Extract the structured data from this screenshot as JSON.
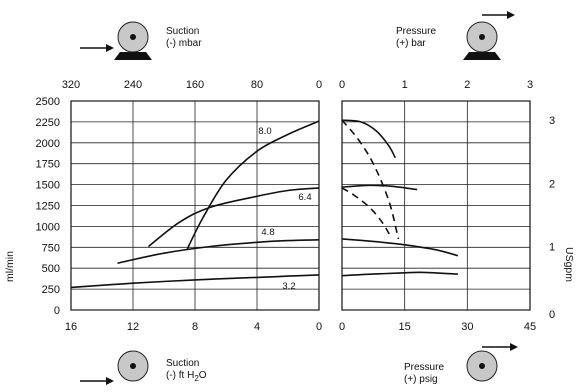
{
  "chart_data": {
    "type": "line",
    "y_left": {
      "label": "ml/min",
      "ticks": [
        "0",
        "250",
        "500",
        "750",
        "1000",
        "1250",
        "1500",
        "1750",
        "2000",
        "2250",
        "2500"
      ],
      "ylim": [
        0,
        2500
      ]
    },
    "y_right": {
      "label": "USgpm",
      "ticks": [
        "0",
        "1",
        "2",
        "3"
      ],
      "ylim": [
        0,
        3.3
      ]
    },
    "suction_panel": {
      "top_caption": {
        "line1": "Suction",
        "line2": "(-) mbar"
      },
      "top_ticks": [
        "320",
        "240",
        "160",
        "80",
        "0"
      ],
      "top_range": [
        320,
        0
      ],
      "bottom_caption": {
        "line1": "Suction",
        "line2": "(-) ft H",
        "sub": "2",
        "line2_end": "O"
      },
      "bottom_ticks": [
        "16",
        "12",
        "8",
        "4",
        "0"
      ],
      "bottom_range": [
        16,
        0
      ],
      "series": [
        {
          "name": "8.0",
          "points": [
            [
              8.5,
              730
            ],
            [
              7.5,
              1100
            ],
            [
              6,
              1550
            ],
            [
              4,
              1900
            ],
            [
              2,
              2100
            ],
            [
              0,
              2260
            ]
          ]
        },
        {
          "name": "6.4",
          "points": [
            [
              11,
              760
            ],
            [
              9,
              1050
            ],
            [
              7,
              1230
            ],
            [
              4,
              1360
            ],
            [
              2,
              1430
            ],
            [
              0,
              1460
            ]
          ]
        },
        {
          "name": "4.8",
          "points": [
            [
              13,
              560
            ],
            [
              10,
              680
            ],
            [
              7,
              760
            ],
            [
              4,
              810
            ],
            [
              2,
              830
            ],
            [
              0,
              840
            ]
          ]
        },
        {
          "name": "3.2",
          "points": [
            [
              16,
              270
            ],
            [
              12,
              320
            ],
            [
              8,
              360
            ],
            [
              4,
              390
            ],
            [
              2,
              405
            ],
            [
              0,
              420
            ]
          ]
        }
      ]
    },
    "pressure_panel": {
      "top_caption": {
        "line1": "Pressure",
        "line2": "(+) bar"
      },
      "top_ticks": [
        "0",
        "1",
        "2",
        "3"
      ],
      "top_range": [
        0,
        3
      ],
      "bottom_caption": {
        "line1": "Pressure",
        "line2": "(+) psig"
      },
      "bottom_ticks": [
        "0",
        "15",
        "30",
        "45"
      ],
      "bottom_range": [
        0,
        45
      ],
      "solid_series": [
        {
          "points": [
            [
              0,
              2270
            ],
            [
              0.3,
              2250
            ],
            [
              0.55,
              2140
            ],
            [
              0.75,
              1960
            ],
            [
              0.85,
              1820
            ]
          ]
        },
        {
          "points": [
            [
              0,
              1470
            ],
            [
              0.4,
              1490
            ],
            [
              0.8,
              1480
            ],
            [
              1.2,
              1440
            ]
          ]
        },
        {
          "points": [
            [
              0,
              850
            ],
            [
              0.5,
              820
            ],
            [
              1,
              780
            ],
            [
              1.5,
              720
            ],
            [
              1.85,
              650
            ]
          ]
        },
        {
          "points": [
            [
              0,
              410
            ],
            [
              0.5,
              430
            ],
            [
              1,
              445
            ],
            [
              1.3,
              450
            ],
            [
              1.85,
              430
            ]
          ]
        }
      ],
      "dashed_series": [
        {
          "points": [
            [
              0,
              2270
            ],
            [
              0.25,
              2050
            ],
            [
              0.5,
              1750
            ],
            [
              0.75,
              1300
            ],
            [
              0.9,
              850
            ]
          ]
        },
        {
          "points": [
            [
              0,
              1460
            ],
            [
              0.2,
              1370
            ],
            [
              0.45,
              1220
            ],
            [
              0.65,
              1040
            ],
            [
              0.78,
              870
            ]
          ]
        }
      ]
    }
  }
}
